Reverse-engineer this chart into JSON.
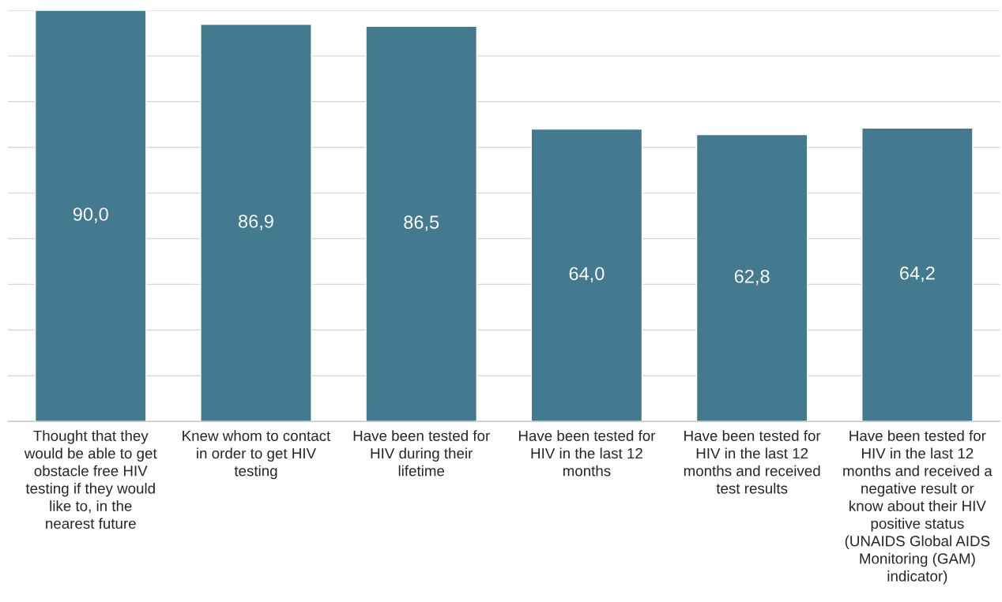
{
  "chart_data": {
    "type": "bar",
    "categories": [
      "Thought that they would be able to get obstacle free HIV testing if they would like to, in the nearest future",
      "Knew whom to contact in order to get HIV testing",
      "Have been tested for HIV during their lifetime",
      "Have been tested for HIV in the last 12 months",
      "Have been tested for HIV in the last 12 months and received test results",
      "Have been tested for HIV in the last 12 months and received a negative result or know about their HIV positive status (UNAIDS Global AIDS Monitoring (GAM) indicator)"
    ],
    "values": [
      90.0,
      86.9,
      86.5,
      64.0,
      62.8,
      64.2
    ],
    "value_labels": [
      "90,0",
      "86,9",
      "86,5",
      "64,0",
      "62,8",
      "64,2"
    ],
    "color": "#437a8f",
    "ylim": [
      0,
      90
    ],
    "yticks": [
      {
        "value": 0,
        "label": null
      },
      {
        "value": 10,
        "label": null
      },
      {
        "value": 20,
        "label": null
      },
      {
        "value": 30,
        "label": null
      },
      {
        "value": 40,
        "label": null
      },
      {
        "value": 50,
        "label": null
      },
      {
        "value": 60,
        "label": null
      },
      {
        "value": 70,
        "label": null
      },
      {
        "value": 80,
        "label": null
      },
      {
        "value": 90,
        "label": null
      }
    ],
    "grid": "y",
    "tick_labels": "x"
  }
}
